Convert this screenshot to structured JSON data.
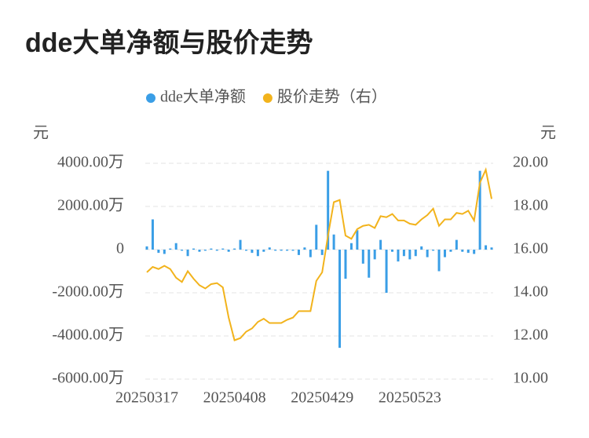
{
  "chart_data": {
    "type": "combo",
    "title": "dde大单净额与股价走势",
    "y_label": "元",
    "y2_label": "元",
    "categories": [
      "20250317",
      null,
      null,
      null,
      null,
      null,
      null,
      null,
      null,
      null,
      null,
      null,
      null,
      null,
      null,
      "20250408",
      null,
      null,
      null,
      null,
      null,
      null,
      null,
      null,
      null,
      null,
      null,
      null,
      null,
      null,
      "20250429",
      null,
      null,
      null,
      null,
      null,
      null,
      null,
      null,
      null,
      null,
      null,
      null,
      null,
      null,
      "20250523",
      null,
      null,
      null,
      null,
      null,
      null,
      null,
      null,
      null,
      null,
      null,
      null,
      null,
      null
    ],
    "series": [
      {
        "name": "dde大单净额",
        "type": "bar",
        "color": "#3a9ee6",
        "values": [
          150,
          1400,
          -150,
          -200,
          50,
          300,
          -50,
          -300,
          50,
          -100,
          -50,
          50,
          -50,
          50,
          -100,
          50,
          450,
          -50,
          -150,
          -300,
          -100,
          100,
          -50,
          -50,
          -50,
          -50,
          -250,
          100,
          -350,
          1150,
          -250,
          3650,
          700,
          -4550,
          -1350,
          300,
          900,
          -650,
          -1300,
          -450,
          450,
          -2000,
          -100,
          -550,
          -300,
          -450,
          -300,
          150,
          -350,
          -50,
          -1000,
          -350,
          -100,
          450,
          -100,
          -150,
          -200,
          3650,
          200,
          100
        ]
      },
      {
        "name": "股价走势（右）",
        "type": "line",
        "axis": "y2",
        "color": "#f2b31c",
        "values": [
          14.95,
          15.2,
          15.1,
          15.25,
          15.1,
          14.7,
          14.5,
          15.0,
          14.65,
          14.35,
          14.2,
          14.4,
          14.45,
          14.25,
          12.85,
          11.8,
          11.9,
          12.2,
          12.35,
          12.65,
          12.8,
          12.6,
          12.6,
          12.6,
          12.75,
          12.85,
          13.15,
          13.15,
          13.15,
          14.55,
          14.95,
          16.65,
          18.2,
          18.3,
          16.65,
          16.5,
          16.95,
          17.1,
          17.15,
          17.0,
          17.55,
          17.5,
          17.65,
          17.35,
          17.35,
          17.2,
          17.15,
          17.4,
          17.6,
          17.9,
          17.1,
          17.4,
          17.4,
          17.7,
          17.65,
          17.8,
          17.35,
          19.1,
          19.7,
          18.35
        ]
      }
    ],
    "ylim": [
      -6000,
      4000
    ],
    "yticks": [
      {
        "value": -6000,
        "label": "-6000.00万"
      },
      {
        "value": -4000,
        "label": "-4000.00万"
      },
      {
        "value": -2000,
        "label": "-2000.00万"
      },
      0,
      {
        "value": 2000,
        "label": "2000.00万"
      },
      {
        "value": 4000,
        "label": "4000.00万"
      }
    ],
    "y2lim": [
      10,
      20
    ],
    "y2ticks": [
      {
        "value": 10,
        "label": "10.00"
      },
      {
        "value": 12,
        "label": "12.00"
      },
      {
        "value": 14,
        "label": "14.00"
      },
      {
        "value": 16,
        "label": "16.00"
      },
      {
        "value": 18,
        "label": "18.00"
      },
      {
        "value": 20,
        "label": "20.00"
      }
    ],
    "grid": true
  }
}
